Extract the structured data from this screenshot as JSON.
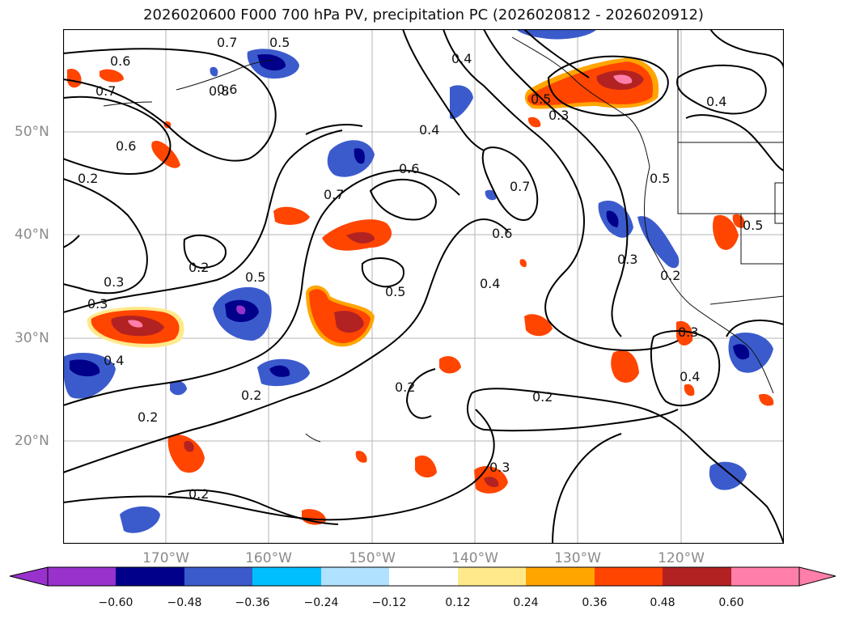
{
  "title": "2026020600 F000 700 hPa PV, precipitation PC (2026020812 - 2026020912)",
  "lat_labels": [
    "50°N",
    "40°N",
    "30°N",
    "20°N"
  ],
  "lon_labels": [
    "170°W",
    "160°W",
    "150°W",
    "140°W",
    "130°W",
    "120°W"
  ],
  "contour_labels": [
    "0.7",
    "0.6",
    "0.6",
    "0.7",
    "0.8",
    "0.5",
    "0.6",
    "0.2",
    "0.3",
    "0.2",
    "0.5",
    "0.3",
    "0.4",
    "0.4",
    "0.6",
    "0.5",
    "0.7",
    "0.4",
    "0.6",
    "0.7",
    "0.3",
    "0.5",
    "0.4",
    "0.3",
    "0.5",
    "0.2",
    "0.2",
    "0.3",
    "0.4",
    "0.2",
    "0.2",
    "0.3",
    "0.2",
    "0.4",
    "0.2",
    "0.5"
  ],
  "colorbar": {
    "ticks": [
      "−0.60",
      "−0.48",
      "−0.36",
      "−0.24",
      "−0.12",
      "0.12",
      "0.24",
      "0.36",
      "0.48",
      "0.60"
    ],
    "colors": [
      "#9932cc",
      "#00008b",
      "#3b5bcc",
      "#00bfff",
      "#b0e2ff",
      "#ffffff",
      "#ffe98a",
      "#ffa500",
      "#ff4500",
      "#b22222",
      "#ff7faa"
    ]
  }
}
